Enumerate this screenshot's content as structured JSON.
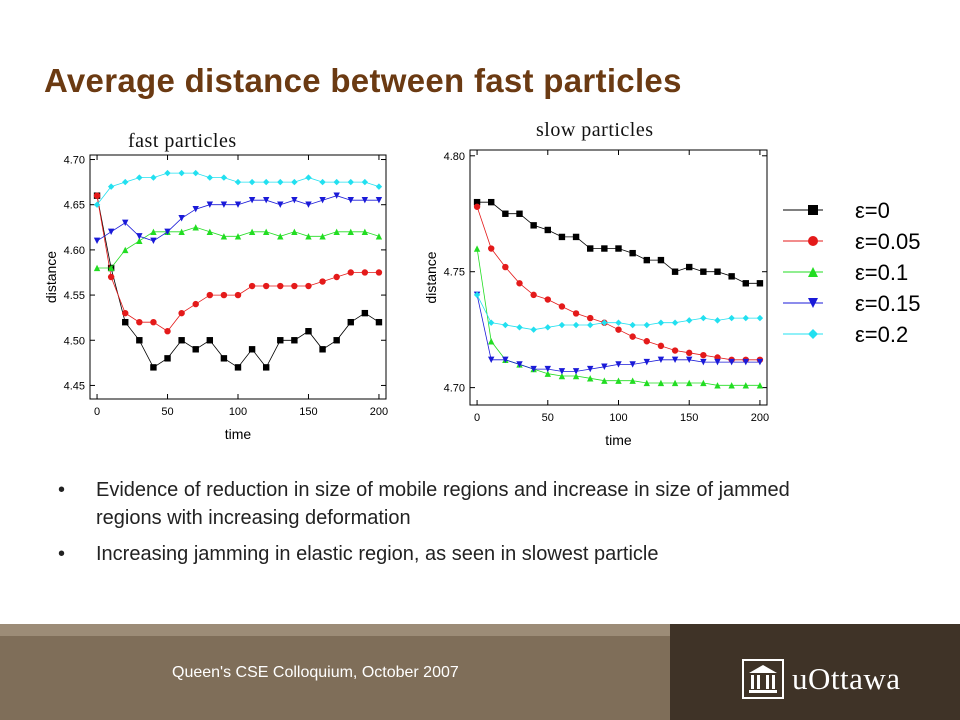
{
  "slide": {
    "title": "Average distance between fast particles",
    "bullets": [
      "Evidence of reduction in size of mobile regions and increase in size of jammed regions with increasing deformation",
      "Increasing jamming in elastic region, as seen in slowest particle"
    ],
    "bullet_symbol": "•"
  },
  "footer": {
    "text": "Queen's CSE Colloquium, October 2007",
    "logo_text": "uOttawa",
    "colors": {
      "left": "#7f6e59",
      "right": "#3f3327"
    }
  },
  "series_colors": [
    "#000000",
    "#e41a1a",
    "#22dd22",
    "#1a1ad8",
    "#22e0f0"
  ],
  "chart_data": [
    {
      "type": "scatter",
      "title": "fast particles",
      "xlabel": "time",
      "ylabel": "distance",
      "xlim": [
        -5,
        205
      ],
      "ylim": [
        4.435,
        4.705
      ],
      "xticks": [
        0,
        50,
        100,
        150,
        200
      ],
      "yticks": [
        4.45,
        4.5,
        4.55,
        4.6,
        4.65,
        4.7
      ],
      "xtick_labels": [
        "0",
        "50",
        "100",
        "150",
        "200"
      ],
      "ytick_labels": [
        "4.45",
        "4.50",
        "4.55",
        "4.60",
        "4.65",
        "4.70"
      ],
      "x": [
        0,
        10,
        20,
        30,
        40,
        50,
        60,
        70,
        80,
        90,
        100,
        110,
        120,
        130,
        140,
        150,
        160,
        170,
        180,
        190,
        200
      ],
      "series": [
        {
          "marker": "square",
          "values": [
            4.66,
            4.58,
            4.52,
            4.5,
            4.47,
            4.48,
            4.5,
            4.49,
            4.5,
            4.48,
            4.47,
            4.49,
            4.47,
            4.5,
            4.5,
            4.51,
            4.49,
            4.5,
            4.52,
            4.53,
            4.52
          ]
        },
        {
          "marker": "circle",
          "values": [
            4.66,
            4.57,
            4.53,
            4.52,
            4.52,
            4.51,
            4.53,
            4.54,
            4.55,
            4.55,
            4.55,
            4.56,
            4.56,
            4.56,
            4.56,
            4.56,
            4.565,
            4.57,
            4.575,
            4.575,
            4.575
          ]
        },
        {
          "marker": "triangle",
          "values": [
            4.58,
            4.58,
            4.6,
            4.61,
            4.62,
            4.62,
            4.62,
            4.625,
            4.62,
            4.615,
            4.615,
            4.62,
            4.62,
            4.615,
            4.62,
            4.615,
            4.615,
            4.62,
            4.62,
            4.62,
            4.615
          ]
        },
        {
          "marker": "triangle-down",
          "values": [
            4.61,
            4.62,
            4.63,
            4.615,
            4.61,
            4.62,
            4.635,
            4.645,
            4.65,
            4.65,
            4.65,
            4.655,
            4.655,
            4.65,
            4.655,
            4.65,
            4.655,
            4.66,
            4.655,
            4.655,
            4.655
          ]
        },
        {
          "marker": "diamond",
          "values": [
            4.65,
            4.67,
            4.675,
            4.68,
            4.68,
            4.685,
            4.685,
            4.685,
            4.68,
            4.68,
            4.675,
            4.675,
            4.675,
            4.675,
            4.675,
            4.68,
            4.675,
            4.675,
            4.675,
            4.675,
            4.67
          ]
        }
      ]
    },
    {
      "type": "scatter",
      "title": "slow particles",
      "xlabel": "time",
      "ylabel": "distance",
      "xlim": [
        -5,
        205
      ],
      "ylim": [
        4.6925,
        4.8025
      ],
      "xticks": [
        0,
        50,
        100,
        150,
        200
      ],
      "yticks": [
        4.7,
        4.75,
        4.8
      ],
      "xtick_labels": [
        "0",
        "50",
        "100",
        "150",
        "200"
      ],
      "ytick_labels": [
        "4.70",
        "4.75",
        "4.80"
      ],
      "x": [
        0,
        10,
        20,
        30,
        40,
        50,
        60,
        70,
        80,
        90,
        100,
        110,
        120,
        130,
        140,
        150,
        160,
        170,
        180,
        190,
        200
      ],
      "series": [
        {
          "name": "ε=0",
          "marker": "square",
          "values": [
            4.78,
            4.78,
            4.775,
            4.775,
            4.77,
            4.768,
            4.765,
            4.765,
            4.76,
            4.76,
            4.76,
            4.758,
            4.755,
            4.755,
            4.75,
            4.752,
            4.75,
            4.75,
            4.748,
            4.745,
            4.745
          ]
        },
        {
          "name": "ε=0.05",
          "marker": "circle",
          "values": [
            4.778,
            4.76,
            4.752,
            4.745,
            4.74,
            4.738,
            4.735,
            4.732,
            4.73,
            4.728,
            4.725,
            4.722,
            4.72,
            4.718,
            4.716,
            4.715,
            4.714,
            4.713,
            4.712,
            4.712,
            4.712
          ]
        },
        {
          "name": "ε=0.1",
          "marker": "triangle",
          "values": [
            4.76,
            4.72,
            4.712,
            4.71,
            4.708,
            4.706,
            4.705,
            4.705,
            4.704,
            4.703,
            4.703,
            4.703,
            4.702,
            4.702,
            4.702,
            4.702,
            4.702,
            4.701,
            4.701,
            4.701,
            4.701
          ]
        },
        {
          "name": "ε=0.15",
          "marker": "triangle-down",
          "values": [
            4.74,
            4.712,
            4.712,
            4.71,
            4.708,
            4.708,
            4.707,
            4.707,
            4.708,
            4.709,
            4.71,
            4.71,
            4.711,
            4.712,
            4.712,
            4.712,
            4.711,
            4.711,
            4.711,
            4.711,
            4.711
          ]
        },
        {
          "name": "ε=0.2",
          "marker": "diamond",
          "values": [
            4.74,
            4.728,
            4.727,
            4.726,
            4.725,
            4.726,
            4.727,
            4.727,
            4.727,
            4.728,
            4.728,
            4.727,
            4.727,
            4.728,
            4.728,
            4.729,
            4.73,
            4.729,
            4.73,
            4.73,
            4.73
          ]
        }
      ]
    }
  ]
}
